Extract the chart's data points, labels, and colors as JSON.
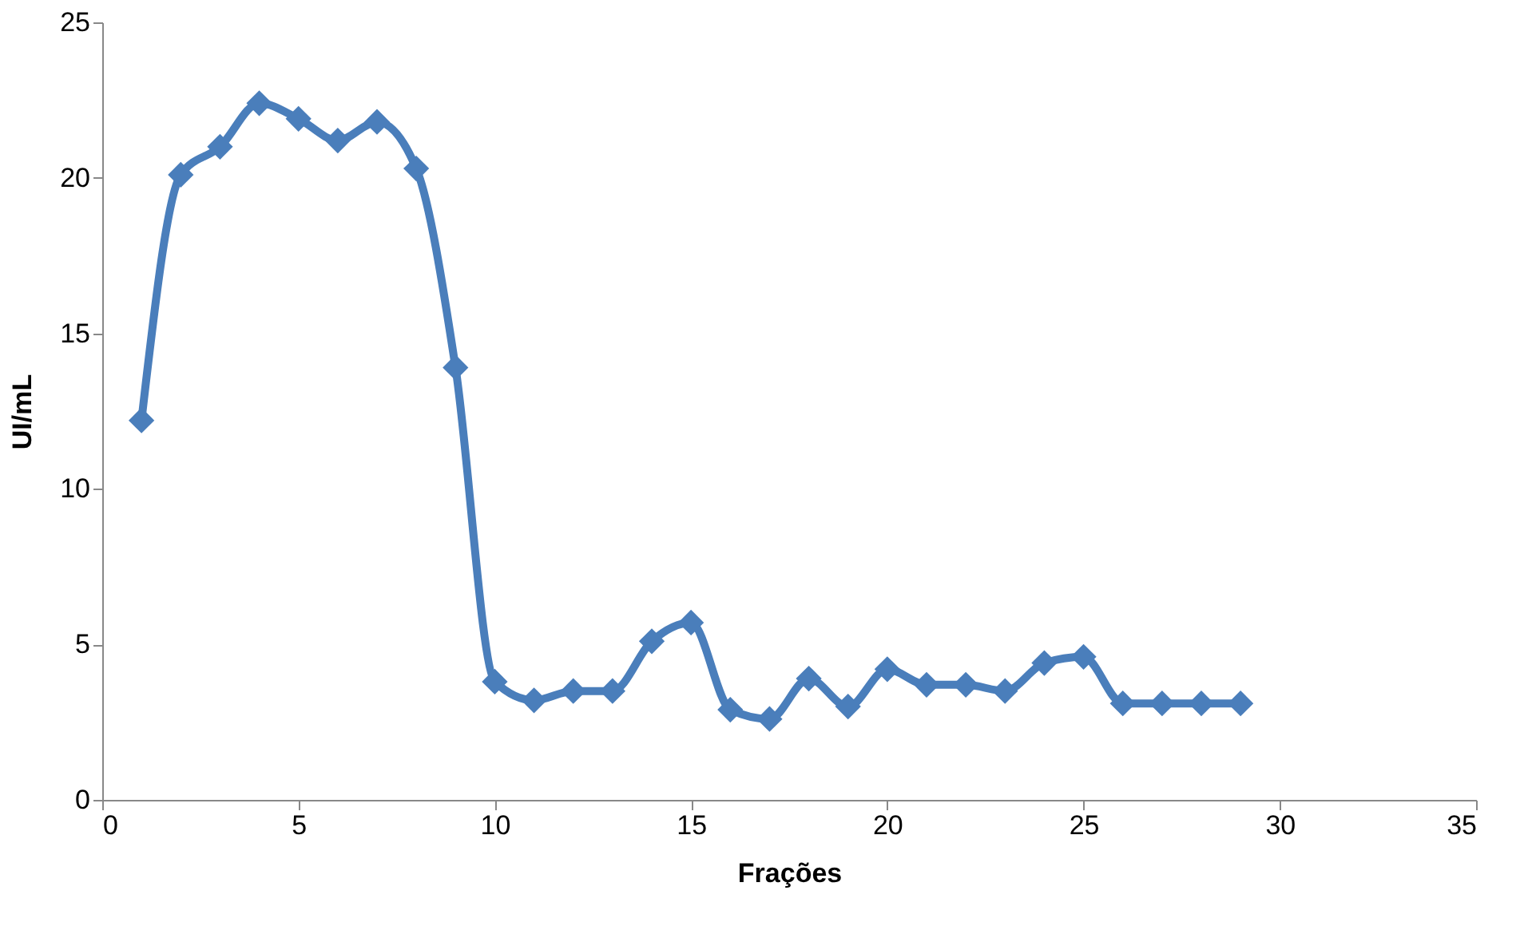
{
  "chart_data": {
    "type": "line",
    "xlabel": "Frações",
    "ylabel": "UI/mL",
    "x": [
      1,
      2,
      3,
      4,
      5,
      6,
      7,
      8,
      9,
      10,
      11,
      12,
      13,
      14,
      15,
      16,
      17,
      18,
      19,
      20,
      21,
      22,
      23,
      24,
      25,
      26,
      27,
      28,
      29
    ],
    "series": [
      {
        "color": "#4a7ebb",
        "values": [
          12.2,
          20.1,
          21.0,
          22.4,
          21.9,
          21.2,
          21.8,
          20.3,
          13.9,
          3.8,
          3.2,
          3.5,
          3.5,
          5.1,
          5.7,
          2.9,
          2.6,
          3.9,
          3.0,
          4.2,
          3.7,
          3.7,
          3.5,
          4.4,
          4.6,
          3.1,
          3.1,
          3.1,
          3.1
        ]
      }
    ],
    "xlim": [
      0,
      35
    ],
    "xticks": [
      0,
      5,
      10,
      15,
      20,
      25,
      30,
      35
    ],
    "ylim": [
      0,
      25
    ],
    "yticks": [
      0,
      5,
      10,
      15,
      20,
      25
    ],
    "grid": false,
    "marker": "diamond",
    "line_style": "solid"
  }
}
